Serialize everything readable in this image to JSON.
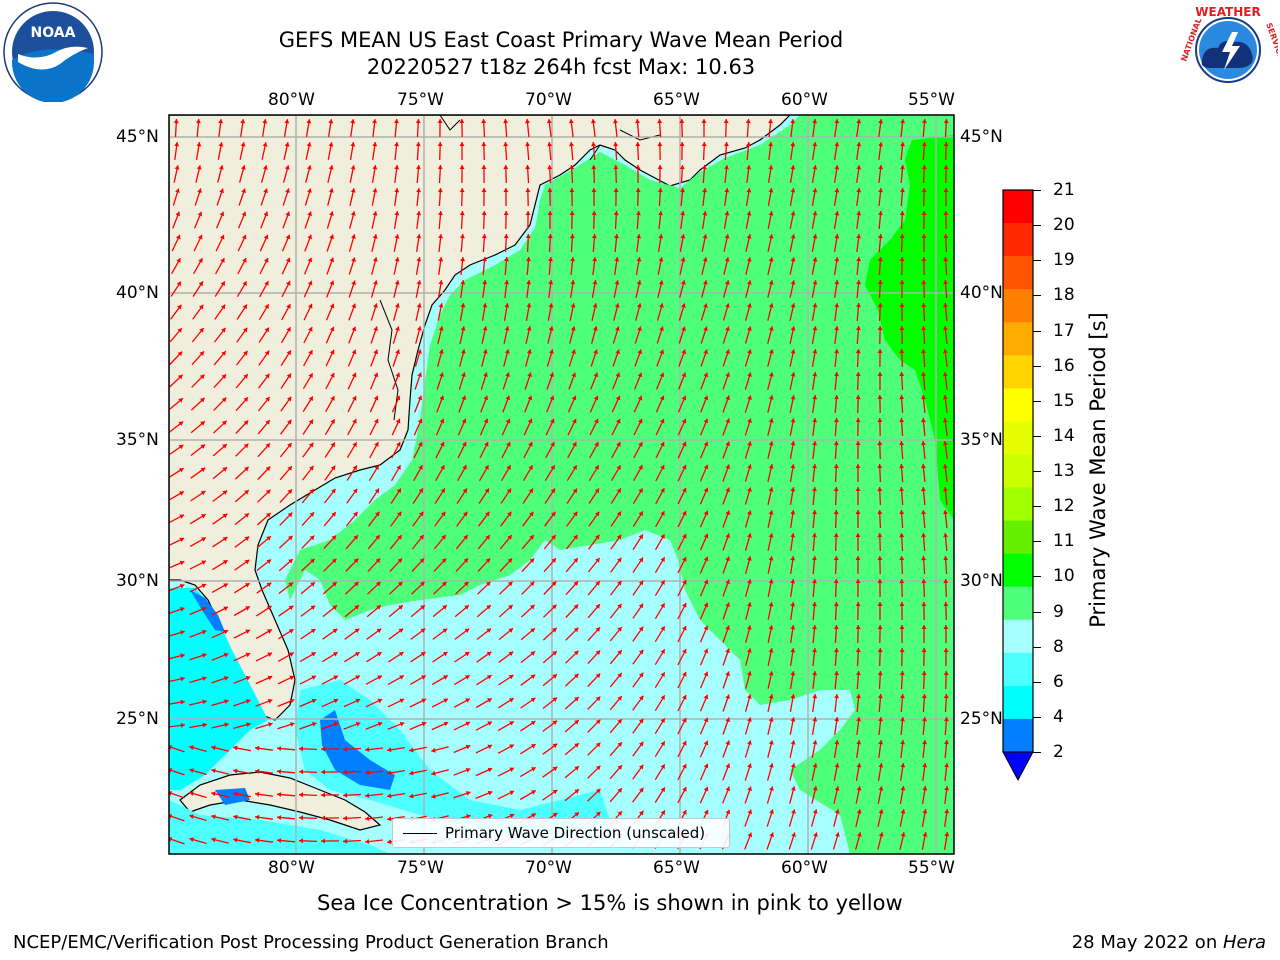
{
  "title_line1": "GEFS MEAN US East Coast Primary Wave Mean Period",
  "title_line2": "20220527 t18z 264h fcst   Max: 10.63",
  "lon_ticks": [
    "80°W",
    "75°W",
    "70°W",
    "65°W",
    "60°W",
    "55°W"
  ],
  "lat_ticks": [
    "45°N",
    "40°N",
    "35°N",
    "30°N",
    "25°N"
  ],
  "legend": {
    "label": "Primary Wave Direction (unscaled)"
  },
  "colorbar": {
    "label": "Primary Wave Mean Period [s]",
    "ticks": [
      "21",
      "20",
      "19",
      "18",
      "17",
      "16",
      "15",
      "14",
      "13",
      "12",
      "11",
      "10",
      "9",
      "8",
      "6",
      "4",
      "2"
    ],
    "colors": [
      "#ff0000",
      "#ff2a00",
      "#ff5500",
      "#ff8000",
      "#ffaa00",
      "#ffd400",
      "#ffff00",
      "#e6ff00",
      "#ccff00",
      "#a0ff00",
      "#66f000",
      "#00ff00",
      "#4dff7a",
      "#a6ffff",
      "#4dffff",
      "#00ffff",
      "#0080ff"
    ],
    "under_color": "#0000ff"
  },
  "caption": "Sea Ice Concentration > 15% is shown in pink to yellow",
  "footer_left": "NCEP/EMC/Verification Post Processing Product Generation Branch",
  "footer_right_prefix": "28 May 2022 on ",
  "footer_right_host": "Hera",
  "logos": {
    "left": "NOAA",
    "right_top": "WEATHER",
    "right_left": "NATIONAL",
    "right_right": "SERVICE"
  },
  "colors": {
    "land": "#f0eedc",
    "arrow": "#ff0000",
    "grid": "#b0b0b0"
  }
}
